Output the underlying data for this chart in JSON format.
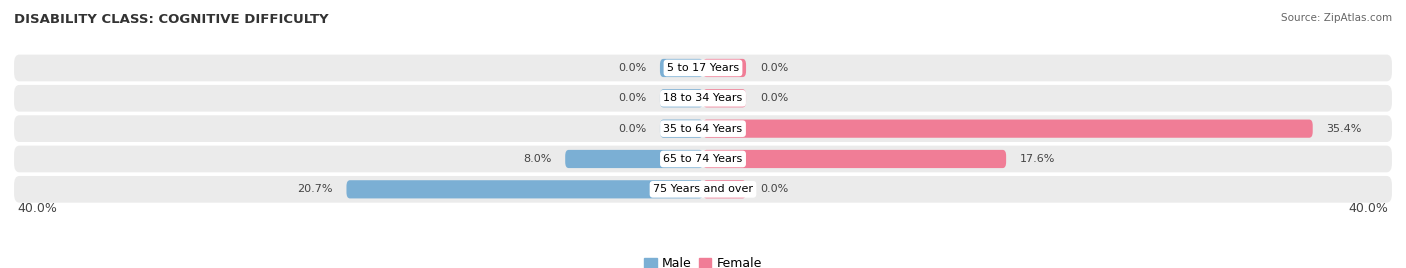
{
  "title": "DISABILITY CLASS: COGNITIVE DIFFICULTY",
  "source_text": "Source: ZipAtlas.com",
  "categories": [
    "5 to 17 Years",
    "18 to 34 Years",
    "35 to 64 Years",
    "65 to 74 Years",
    "75 Years and over"
  ],
  "male_values": [
    0.0,
    0.0,
    0.0,
    8.0,
    20.7
  ],
  "female_values": [
    0.0,
    0.0,
    35.4,
    17.6,
    0.0
  ],
  "max_val": 40.0,
  "min_stub": 2.5,
  "male_color": "#7bafd4",
  "female_color": "#f07d96",
  "row_bg_color": "#ebebeb",
  "label_color": "#444444",
  "title_fontsize": 9.5,
  "axis_label_fontsize": 9,
  "bar_label_fontsize": 8,
  "cat_label_fontsize": 8,
  "legend_fontsize": 9,
  "fig_width": 14.06,
  "fig_height": 2.68,
  "dpi": 100
}
